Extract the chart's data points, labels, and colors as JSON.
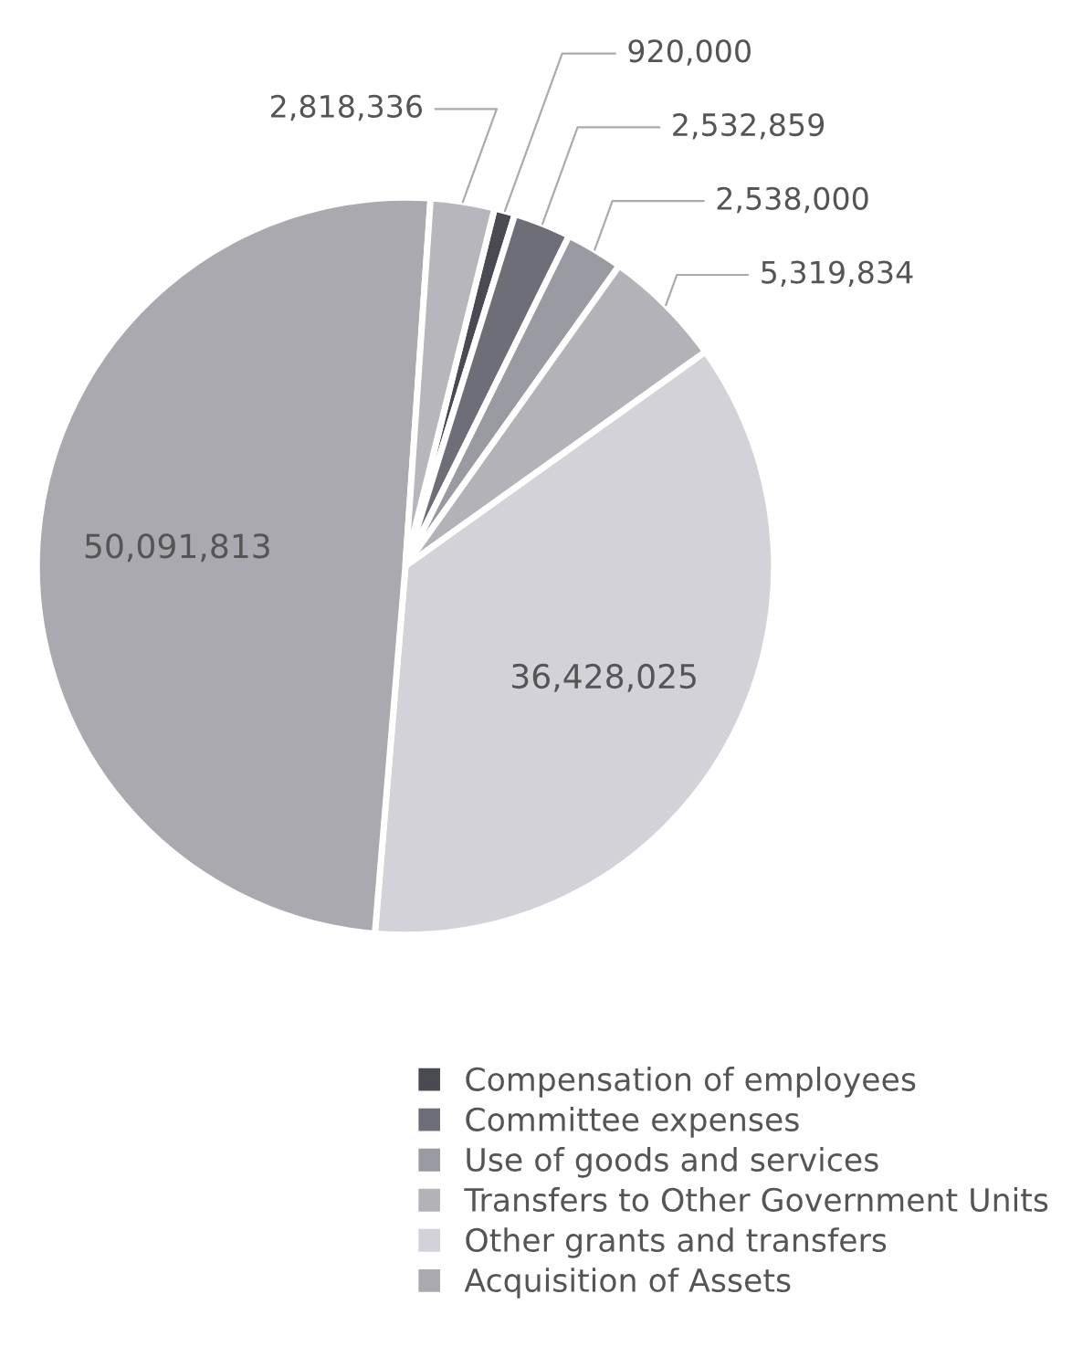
{
  "chart_data": {
    "type": "pie",
    "categories": [
      "Compensation of employees",
      "Committee expenses",
      "Use of goods and services",
      "Transfers to Other Government Units",
      "Other grants and transfers",
      "Acquisition of Assets",
      null
    ],
    "values": [
      920000,
      2532859,
      2538000,
      5319834,
      36428025,
      50091813,
      2818336
    ],
    "colors": [
      "#4a4a52",
      "#6e6e78",
      "#9a9aa2",
      "#b2b2b8",
      "#d2d2d8",
      "#a9a9af",
      "#b6b6bc"
    ],
    "value_labels": [
      "920,000",
      "2,532,859",
      "2,538,000",
      "5,319,834",
      "36,428,025",
      "50,091,813",
      "2,818,336"
    ],
    "legend": "bottom"
  }
}
